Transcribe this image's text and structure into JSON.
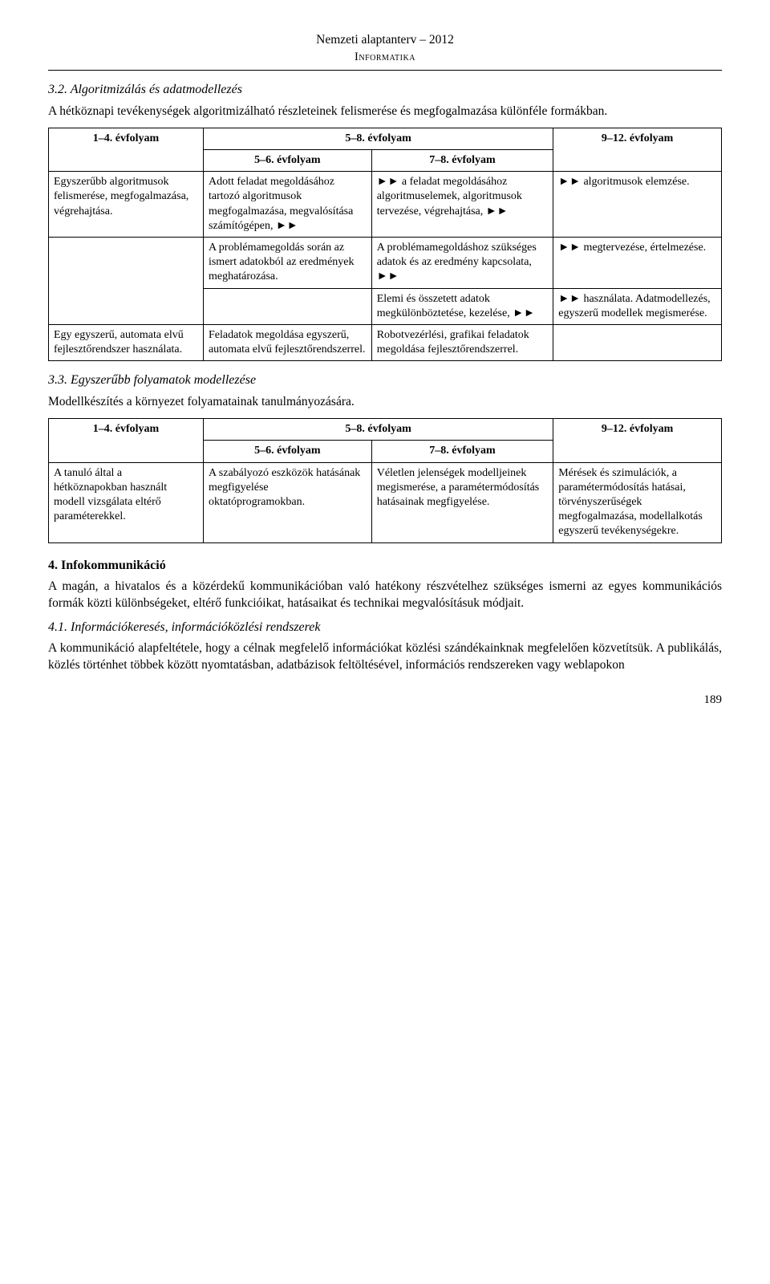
{
  "header": {
    "title": "Nemzeti alaptanterv – 2012",
    "subtitle": "Informatika"
  },
  "section32": {
    "heading": "3.2. Algoritmizálás és adatmodellezés",
    "intro": "A hétköznapi tevékenységek algoritmizálható részleteinek felismerése és megfogalmazása különféle formákban.",
    "th14": "1–4. évfolyam",
    "th58": "5–8. évfolyam",
    "th56": "5–6. évfolyam",
    "th78": "7–8. évfolyam",
    "th912": "9–12. évfolyam",
    "r1c1": "Egyszerűbb algoritmusok felismerése, megfogalmazása, végrehajtása.",
    "r1c2": "Adott feladat megoldásához tartozó algoritmusok megfogalmazása, megvalósítása számítógépen, ►►",
    "r1c3": "►► a feladat megoldásához algoritmuselemek, algoritmusok tervezése, végrehajtása, ►►",
    "r1c4": "►► algoritmusok elemzése.",
    "r2c2": "A problémamegoldás során az ismert adatokból az eredmények meghatározása.",
    "r2c3": "A problémamegoldáshoz szükséges adatok és az eredmény kapcsolata, ►►",
    "r2c4": "►► megtervezése, értelmezése.",
    "r3c3": "Elemi és összetett adatok megkülönböztetése, kezelése, ►►",
    "r3c4": "►► használata. Adatmodellezés, egyszerű modellek megismerése.",
    "r4c1": "Egy egyszerű, automata elvű fejlesztőrendszer használata.",
    "r4c2": "Feladatok megoldása egyszerű, automata elvű fejlesztőrendszerrel.",
    "r4c3": "Robotvezérlési, grafikai feladatok megoldása fejlesztőrendszerrel."
  },
  "section33": {
    "heading": "3.3. Egyszerűbb folyamatok modellezése",
    "intro": "Modellkészítés a környezet folyamatainak tanulmányozására.",
    "th14": "1–4. évfolyam",
    "th58": "5–8. évfolyam",
    "th56": "5–6. évfolyam",
    "th78": "7–8. évfolyam",
    "th912": "9–12. évfolyam",
    "r1c1": "A tanuló által a hétköznapokban használt modell vizsgálata eltérő paraméterekkel.",
    "r1c2": "A szabályozó eszközök hatásának megfigyelése oktatóprogramokban.",
    "r1c3": "Véletlen jelenségek modelljeinek megismerése, a paramétermódosítás hatásainak megfigyelése.",
    "r1c4": "Mérések és szimulációk, a paramétermódosítás hatásai, törvényszerűségek megfogalmazása, modellalkotás egyszerű tevékenységekre."
  },
  "section4": {
    "heading": "4. Infokommunikáció",
    "para": "A magán, a hivatalos és a közérdekű kommunikációban való hatékony részvételhez szükséges ismerni az egyes kommunikációs formák közti különbségeket, eltérő funkcióikat, hatásaikat és technikai megvalósításuk módjait."
  },
  "section41": {
    "heading": "4.1. Információkeresés, információközlési rendszerek",
    "para": "A kommunikáció alapfeltétele, hogy a célnak megfelelő információkat közlési szándékainknak megfelelően közvetítsük. A publikálás, közlés történhet többek között nyomtatásban, adatbázisok feltöltésével, információs rendszereken vagy weblapokon"
  },
  "pageNumber": "189"
}
